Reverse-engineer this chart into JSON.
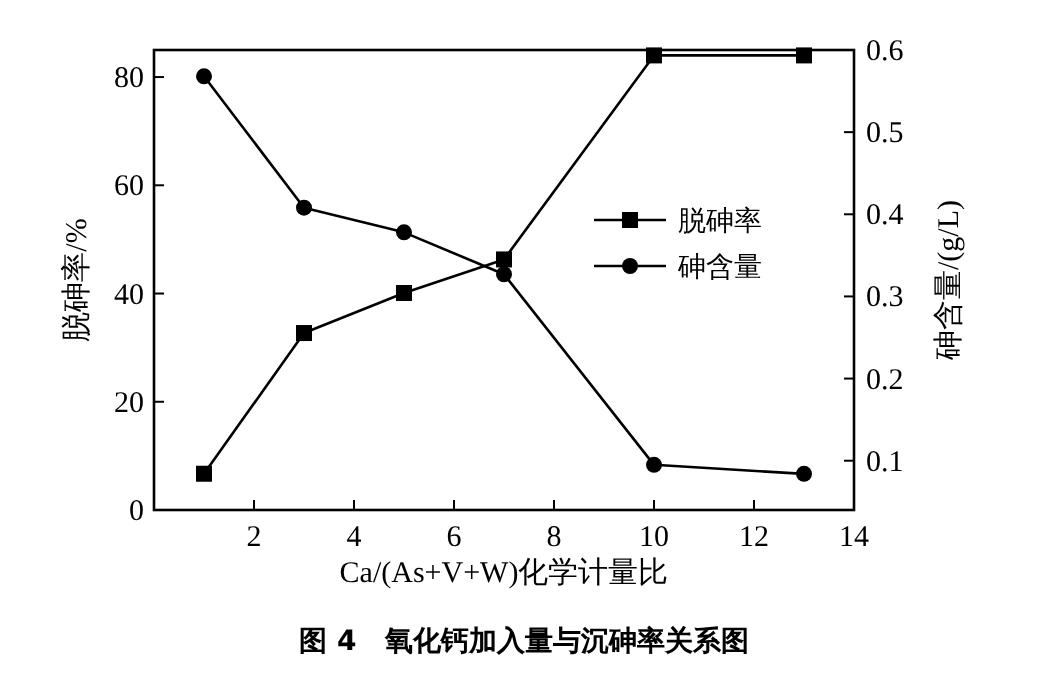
{
  "chart_data": {
    "type": "line",
    "title": "图 4　氧化钙加入量与沉砷率关系图",
    "xlabel": "Ca/(As+V+W)化学计量比",
    "ylabel": "脱砷率/%",
    "y2label": "砷含量/(g/L)",
    "x": [
      1,
      3,
      5,
      7,
      10,
      13
    ],
    "series": [
      {
        "name": "脱砷率",
        "color": "#000000",
        "marker": "square",
        "values": [
          6.7,
          32.7,
          40.1,
          46.3,
          84,
          84
        ]
      },
      {
        "name": "砷含量",
        "color": "#000000",
        "marker": "circle",
        "axis": "y2",
        "values": [
          0.568,
          0.408,
          0.378,
          0.327,
          0.095,
          0.084
        ]
      }
    ],
    "xlim": [
      0,
      14
    ],
    "xticks": [
      2,
      4,
      6,
      8,
      10,
      12,
      14
    ],
    "ylim": [
      0,
      85
    ],
    "yticks": [
      0,
      20,
      40,
      60,
      80
    ],
    "y2lim": [
      0.04,
      0.6
    ],
    "y2ticks": [
      0.1,
      0.2,
      0.3,
      0.4,
      0.5,
      0.6
    ],
    "legend": "right",
    "grid": false,
    "line_style": "solid"
  }
}
